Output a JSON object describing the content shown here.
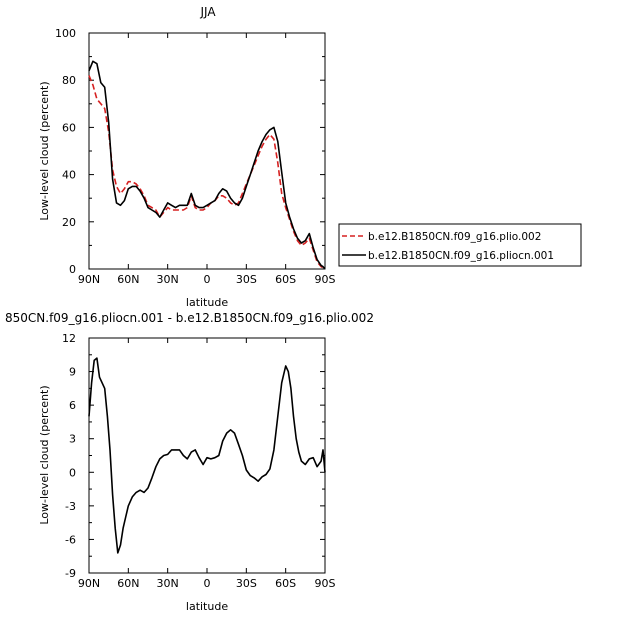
{
  "figure_title": "JJA",
  "difference_title": "850CN.f09_g16.pliocn.001 - b.e12.B1850CN.f09_g16.plio.002",
  "chart_data": [
    {
      "type": "line",
      "title": "JJA",
      "xlabel": "latitude",
      "ylabel": "Low-level cloud (percent)",
      "x_ticks": [
        "90N",
        "60N",
        "30N",
        "0",
        "30S",
        "60S",
        "90S"
      ],
      "y_ticks": [
        "0",
        "20",
        "40",
        "60",
        "80",
        "100"
      ],
      "xlim": [
        90,
        -90
      ],
      "ylim": [
        0,
        100
      ],
      "legend_position": "right",
      "series": [
        {
          "name": "b.e12.B1850CN.f09_g16.plio.002",
          "style": "dashed",
          "color": "#d62020",
          "x": [
            90,
            87,
            84,
            81,
            78,
            75,
            72,
            69,
            66,
            63,
            60,
            57,
            54,
            51,
            48,
            45,
            42,
            39,
            36,
            33,
            30,
            27,
            24,
            21,
            18,
            15,
            12,
            9,
            6,
            3,
            0,
            -3,
            -6,
            -9,
            -12,
            -15,
            -18,
            -21,
            -24,
            -27,
            -30,
            -33,
            -36,
            -39,
            -42,
            -45,
            -48,
            -51,
            -54,
            -57,
            -60,
            -63,
            -66,
            -69,
            -72,
            -75,
            -78,
            -81,
            -84,
            -87,
            -88.5,
            -90
          ],
          "y": [
            82,
            78,
            72,
            70,
            68,
            58,
            42,
            35,
            32,
            34,
            37,
            37,
            36,
            34,
            31,
            27,
            26,
            25,
            22,
            24,
            26,
            25,
            25,
            25,
            25,
            26,
            31,
            26,
            25,
            25,
            26,
            28,
            29,
            31,
            31,
            30,
            28,
            27,
            28,
            32,
            36,
            40,
            44,
            48,
            52,
            55,
            57,
            55,
            45,
            32,
            26,
            21,
            16,
            12,
            10,
            11,
            13,
            8,
            3,
            1,
            0.5,
            0
          ]
        },
        {
          "name": "b.e12.B1850CN.f09_g16.pliocn.001",
          "style": "solid",
          "color": "#000000",
          "x": [
            90,
            87,
            84,
            81,
            78,
            75,
            72,
            69,
            66,
            63,
            60,
            57,
            54,
            51,
            48,
            45,
            42,
            39,
            36,
            33,
            30,
            27,
            24,
            21,
            18,
            15,
            12,
            9,
            6,
            3,
            0,
            -3,
            -6,
            -9,
            -12,
            -15,
            -18,
            -21,
            -24,
            -27,
            -30,
            -33,
            -36,
            -39,
            -42,
            -45,
            -48,
            -51,
            -54,
            -57,
            -60,
            -63,
            -66,
            -69,
            -72,
            -75,
            -78,
            -81,
            -84,
            -87,
            -88.5,
            -90
          ],
          "y": [
            84,
            88,
            87,
            79,
            77,
            62,
            38,
            28,
            27,
            29,
            34,
            35,
            35,
            33,
            30,
            26,
            25,
            24,
            22,
            25,
            28,
            27,
            26,
            27,
            27,
            27,
            32,
            27,
            26,
            26,
            27,
            28,
            29,
            32,
            34,
            33,
            30,
            28,
            27,
            30,
            35,
            40,
            45,
            50,
            54,
            57,
            59,
            60,
            54,
            41,
            28,
            22,
            17,
            13,
            11,
            12,
            15,
            9,
            4,
            1.5,
            1,
            0
          ]
        }
      ]
    },
    {
      "type": "line",
      "title": "850CN.f09_g16.pliocn.001 - b.e12.B1850CN.f09_g16.plio.002",
      "xlabel": "latitude",
      "ylabel": "Low-level cloud (percent)",
      "x_ticks": [
        "90N",
        "60N",
        "30N",
        "0",
        "30S",
        "60S",
        "90S"
      ],
      "y_ticks": [
        "-9",
        "-6",
        "-3",
        "0",
        "3",
        "6",
        "9",
        "12"
      ],
      "xlim": [
        90,
        -90
      ],
      "ylim": [
        -9,
        12
      ],
      "series": [
        {
          "style": "solid",
          "color": "#000000",
          "x": [
            90,
            88,
            86,
            84,
            82,
            80,
            78,
            76,
            74,
            72,
            70,
            68,
            66,
            64,
            62,
            60,
            57,
            54,
            51,
            48,
            45,
            42,
            39,
            36,
            33,
            30,
            27,
            24,
            21,
            18,
            15,
            12,
            9,
            6,
            3,
            0,
            -3,
            -6,
            -9,
            -12,
            -15,
            -18,
            -21,
            -24,
            -27,
            -30,
            -33,
            -36,
            -39,
            -42,
            -45,
            -48,
            -51,
            -54,
            -57,
            -60,
            -62,
            -64,
            -66,
            -68,
            -70,
            -72,
            -75,
            -78,
            -81,
            -84,
            -87,
            -88.5,
            -90
          ],
          "y": [
            5,
            8,
            10,
            10.2,
            8.5,
            8,
            7.5,
            5,
            2,
            -2,
            -5,
            -7.2,
            -6.5,
            -5,
            -4,
            -3,
            -2.2,
            -1.8,
            -1.6,
            -1.8,
            -1.4,
            -0.5,
            0.5,
            1.2,
            1.5,
            1.6,
            2,
            2,
            2,
            1.5,
            1.2,
            1.8,
            2,
            1.3,
            0.7,
            1.3,
            1.2,
            1.3,
            1.5,
            2.8,
            3.5,
            3.8,
            3.5,
            2.5,
            1.5,
            0.2,
            -0.3,
            -0.5,
            -0.8,
            -0.4,
            -0.2,
            0.3,
            2,
            5,
            8,
            9.5,
            9,
            7.5,
            5,
            3,
            1.8,
            1,
            0.7,
            1.2,
            1.3,
            0.5,
            1,
            2,
            0
          ]
        }
      ]
    }
  ]
}
